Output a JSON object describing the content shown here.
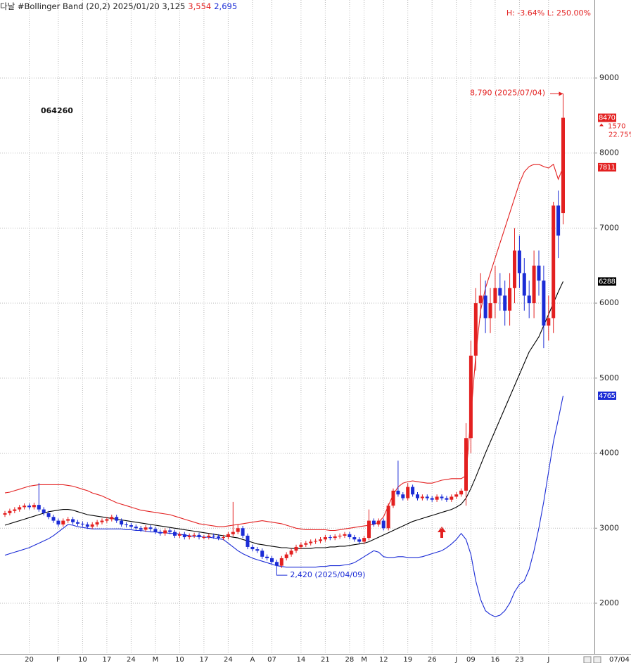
{
  "chart_data": {
    "type": "candlestick",
    "header": {
      "title": "다날 #Bollinger Band  (20,2) 2025/01/20 3,125",
      "upper_value": "3,554",
      "lower_value": "2,695",
      "range_text": "H: -3.64%   L: 250.00%"
    },
    "code": "064260",
    "change": "1570",
    "change_pct": "22.75%",
    "high_annotation": "8,790 (2025/07/04)",
    "low_annotation": "2,420 (2025/04/09)",
    "last_date": "07/04",
    "up_color": "#e32020",
    "down_color": "#1b2cd6",
    "mid_color": "#000000",
    "grid": true,
    "ylim": [
      1325,
      10040
    ],
    "yticks": [
      2000,
      3000,
      4000,
      5000,
      6000,
      7000,
      8000,
      9000
    ],
    "categories": [
      null,
      null,
      null,
      null,
      null,
      "20",
      null,
      null,
      null,
      null,
      null,
      "F",
      null,
      null,
      null,
      null,
      "10",
      null,
      null,
      null,
      null,
      "17",
      null,
      null,
      null,
      null,
      "24",
      null,
      null,
      null,
      null,
      "M",
      null,
      null,
      null,
      null,
      "10",
      null,
      null,
      null,
      null,
      "17",
      null,
      null,
      null,
      null,
      "24",
      null,
      null,
      null,
      null,
      "A",
      null,
      null,
      null,
      "07",
      null,
      null,
      null,
      null,
      null,
      "14",
      null,
      null,
      null,
      null,
      "21",
      null,
      null,
      null,
      null,
      "28",
      null,
      null,
      "M",
      null,
      null,
      null,
      "12",
      null,
      null,
      null,
      null,
      "19",
      null,
      null,
      null,
      null,
      "26",
      null,
      null,
      null,
      null,
      "J",
      null,
      null,
      "09",
      null,
      null,
      null,
      null,
      "16",
      null,
      null,
      null,
      null,
      "23",
      null,
      null,
      null,
      null,
      null,
      "J",
      null,
      null,
      null
    ],
    "open": [
      3180,
      3200,
      3230,
      3250,
      3280,
      3300,
      3280,
      3310,
      3250,
      3200,
      3150,
      3100,
      3050,
      3100,
      3120,
      3080,
      3060,
      3050,
      3020,
      3050,
      3080,
      3100,
      3120,
      3150,
      3100,
      3050,
      3040,
      3020,
      3000,
      2980,
      3010,
      2990,
      2950,
      2930,
      2970,
      2950,
      2900,
      2920,
      2880,
      2900,
      2910,
      2880,
      2880,
      2900,
      2890,
      2870,
      2880,
      2920,
      2950,
      3000,
      2900,
      2750,
      2720,
      2700,
      2620,
      2600,
      2550,
      2500,
      2600,
      2650,
      2700,
      2750,
      2780,
      2800,
      2820,
      2830,
      2850,
      2880,
      2870,
      2890,
      2900,
      2920,
      2880,
      2850,
      2820,
      2870,
      3100,
      3050,
      3100,
      3000,
      3300,
      3500,
      3450,
      3400,
      3550,
      3450,
      3400,
      3420,
      3400,
      3380,
      3420,
      3400,
      3380,
      3420,
      3450,
      3500,
      4200,
      5300,
      6000,
      6100,
      5800,
      6000,
      6200,
      6100,
      5900,
      6200,
      6700,
      6400,
      6100,
      6000,
      6500,
      6300,
      5700,
      5800,
      7300,
      7200
    ],
    "high": [
      3230,
      3260,
      3280,
      3310,
      3330,
      3330,
      3340,
      3600,
      3280,
      3230,
      3180,
      3130,
      3130,
      3150,
      3150,
      3110,
      3090,
      3080,
      3080,
      3110,
      3130,
      3150,
      3180,
      3180,
      3130,
      3080,
      3070,
      3050,
      3030,
      3040,
      3040,
      3020,
      2980,
      3000,
      3000,
      2980,
      2950,
      2950,
      2930,
      2940,
      2940,
      2910,
      2930,
      2930,
      2920,
      2910,
      2950,
      3350,
      3050,
      3030,
      2930,
      2780,
      2750,
      2730,
      2650,
      2630,
      2580,
      2630,
      2680,
      2730,
      2780,
      2810,
      2830,
      2850,
      2860,
      2880,
      2910,
      2910,
      2920,
      2930,
      2950,
      2950,
      2910,
      2880,
      2900,
      3250,
      3130,
      3130,
      3130,
      3330,
      3530,
      3900,
      3480,
      3600,
      3580,
      3480,
      3450,
      3450,
      3430,
      3450,
      3450,
      3430,
      3450,
      3480,
      3530,
      4400,
      5500,
      6200,
      6400,
      6300,
      6200,
      6500,
      6400,
      6300,
      6400,
      7000,
      6900,
      6600,
      6300,
      6700,
      6700,
      6500,
      6100,
      7350,
      7500,
      8790
    ],
    "low": [
      3150,
      3170,
      3200,
      3220,
      3250,
      3250,
      3250,
      3220,
      3170,
      3120,
      3070,
      3020,
      3020,
      3070,
      3050,
      3030,
      3020,
      2990,
      2990,
      3020,
      3050,
      3070,
      3090,
      3070,
      3020,
      3010,
      2990,
      2970,
      2950,
      2950,
      2960,
      2920,
      2900,
      2900,
      2920,
      2870,
      2870,
      2850,
      2850,
      2870,
      2850,
      2850,
      2850,
      2860,
      2840,
      2840,
      2850,
      2890,
      2920,
      2870,
      2720,
      2690,
      2670,
      2590,
      2570,
      2520,
      2420,
      2470,
      2570,
      2620,
      2670,
      2720,
      2750,
      2770,
      2790,
      2800,
      2820,
      2840,
      2840,
      2860,
      2870,
      2850,
      2820,
      2790,
      2790,
      2840,
      3020,
      3020,
      2970,
      2970,
      3270,
      3420,
      3370,
      3370,
      3420,
      3370,
      3370,
      3370,
      3350,
      3350,
      3370,
      3350,
      3350,
      3390,
      3420,
      3300,
      4000,
      5100,
      5800,
      5600,
      5600,
      5800,
      5900,
      5700,
      5700,
      6000,
      6200,
      5900,
      5800,
      5800,
      6100,
      5400,
      5500,
      5600,
      6600,
      7050
    ],
    "close": [
      3200,
      3230,
      3250,
      3280,
      3300,
      3280,
      3310,
      3250,
      3200,
      3150,
      3100,
      3050,
      3100,
      3120,
      3080,
      3060,
      3050,
      3020,
      3050,
      3080,
      3100,
      3120,
      3150,
      3100,
      3050,
      3040,
      3020,
      3000,
      2980,
      3010,
      2990,
      2950,
      2930,
      2970,
      2950,
      2900,
      2920,
      2880,
      2900,
      2910,
      2880,
      2880,
      2900,
      2890,
      2870,
      2880,
      2920,
      2950,
      3000,
      2900,
      2750,
      2720,
      2700,
      2620,
      2600,
      2550,
      2500,
      2600,
      2650,
      2700,
      2750,
      2780,
      2800,
      2820,
      2830,
      2850,
      2880,
      2870,
      2890,
      2900,
      2920,
      2880,
      2850,
      2820,
      2870,
      3100,
      3050,
      3100,
      3000,
      3300,
      3500,
      3450,
      3400,
      3550,
      3450,
      3400,
      3420,
      3400,
      3380,
      3420,
      3400,
      3380,
      3420,
      3450,
      3500,
      4200,
      5300,
      6000,
      6100,
      5800,
      6000,
      6200,
      6100,
      5900,
      6200,
      6700,
      6400,
      6100,
      6000,
      6500,
      6300,
      5700,
      5800,
      7300,
      6900,
      8470
    ],
    "upper": [
      3470,
      3480,
      3500,
      3520,
      3540,
      3560,
      3570,
      3580,
      3580,
      3580,
      3580,
      3580,
      3580,
      3570,
      3560,
      3540,
      3520,
      3500,
      3470,
      3450,
      3430,
      3400,
      3370,
      3340,
      3320,
      3300,
      3280,
      3260,
      3240,
      3230,
      3220,
      3210,
      3200,
      3190,
      3180,
      3160,
      3140,
      3120,
      3100,
      3080,
      3060,
      3050,
      3040,
      3030,
      3020,
      3020,
      3030,
      3040,
      3050,
      3060,
      3070,
      3080,
      3090,
      3100,
      3090,
      3080,
      3070,
      3060,
      3040,
      3020,
      3000,
      2990,
      2980,
      2980,
      2980,
      2980,
      2980,
      2970,
      2970,
      2980,
      2990,
      3000,
      3010,
      3020,
      3030,
      3040,
      3050,
      3080,
      3150,
      3300,
      3450,
      3550,
      3600,
      3620,
      3630,
      3620,
      3610,
      3600,
      3600,
      3620,
      3640,
      3650,
      3660,
      3660,
      3660,
      3700,
      4500,
      5300,
      5900,
      6200,
      6400,
      6600,
      6800,
      7000,
      7200,
      7400,
      7600,
      7750,
      7820,
      7850,
      7850,
      7820,
      7800,
      7850,
      7650,
      7811
    ],
    "middle": [
      3040,
      3060,
      3080,
      3100,
      3120,
      3140,
      3160,
      3180,
      3200,
      3220,
      3230,
      3240,
      3250,
      3250,
      3240,
      3220,
      3200,
      3180,
      3170,
      3160,
      3150,
      3140,
      3130,
      3120,
      3110,
      3100,
      3090,
      3080,
      3070,
      3060,
      3050,
      3040,
      3030,
      3020,
      3010,
      3000,
      2990,
      2980,
      2970,
      2960,
      2950,
      2940,
      2930,
      2920,
      2910,
      2900,
      2890,
      2880,
      2870,
      2850,
      2830,
      2810,
      2790,
      2780,
      2770,
      2760,
      2750,
      2740,
      2740,
      2730,
      2730,
      2730,
      2730,
      2730,
      2740,
      2740,
      2740,
      2750,
      2750,
      2760,
      2760,
      2770,
      2780,
      2790,
      2800,
      2820,
      2850,
      2880,
      2910,
      2940,
      2970,
      3000,
      3030,
      3060,
      3090,
      3110,
      3130,
      3150,
      3170,
      3190,
      3210,
      3230,
      3250,
      3280,
      3320,
      3400,
      3530,
      3680,
      3840,
      4000,
      4150,
      4300,
      4450,
      4600,
      4750,
      4900,
      5050,
      5200,
      5350,
      5450,
      5550,
      5700,
      5850,
      6000,
      6150,
      6288
    ],
    "lower": [
      2640,
      2660,
      2680,
      2700,
      2720,
      2740,
      2770,
      2800,
      2830,
      2860,
      2900,
      2950,
      3000,
      3050,
      3040,
      3020,
      3010,
      3000,
      2990,
      2990,
      2990,
      2990,
      2990,
      2990,
      2990,
      2980,
      2980,
      2970,
      2970,
      2960,
      2950,
      2950,
      2940,
      2940,
      2930,
      2930,
      2920,
      2910,
      2900,
      2890,
      2890,
      2880,
      2880,
      2870,
      2860,
      2850,
      2800,
      2750,
      2700,
      2660,
      2630,
      2600,
      2580,
      2560,
      2540,
      2520,
      2500,
      2490,
      2480,
      2480,
      2480,
      2480,
      2480,
      2480,
      2480,
      2490,
      2490,
      2500,
      2500,
      2500,
      2510,
      2520,
      2540,
      2580,
      2620,
      2660,
      2700,
      2680,
      2620,
      2610,
      2610,
      2620,
      2620,
      2610,
      2610,
      2610,
      2620,
      2640,
      2660,
      2680,
      2700,
      2740,
      2790,
      2850,
      2930,
      2850,
      2650,
      2300,
      2050,
      1900,
      1850,
      1820,
      1840,
      1900,
      2000,
      2150,
      2250,
      2300,
      2450,
      2700,
      3000,
      3350,
      3750,
      4150,
      4450,
      4765
    ]
  }
}
